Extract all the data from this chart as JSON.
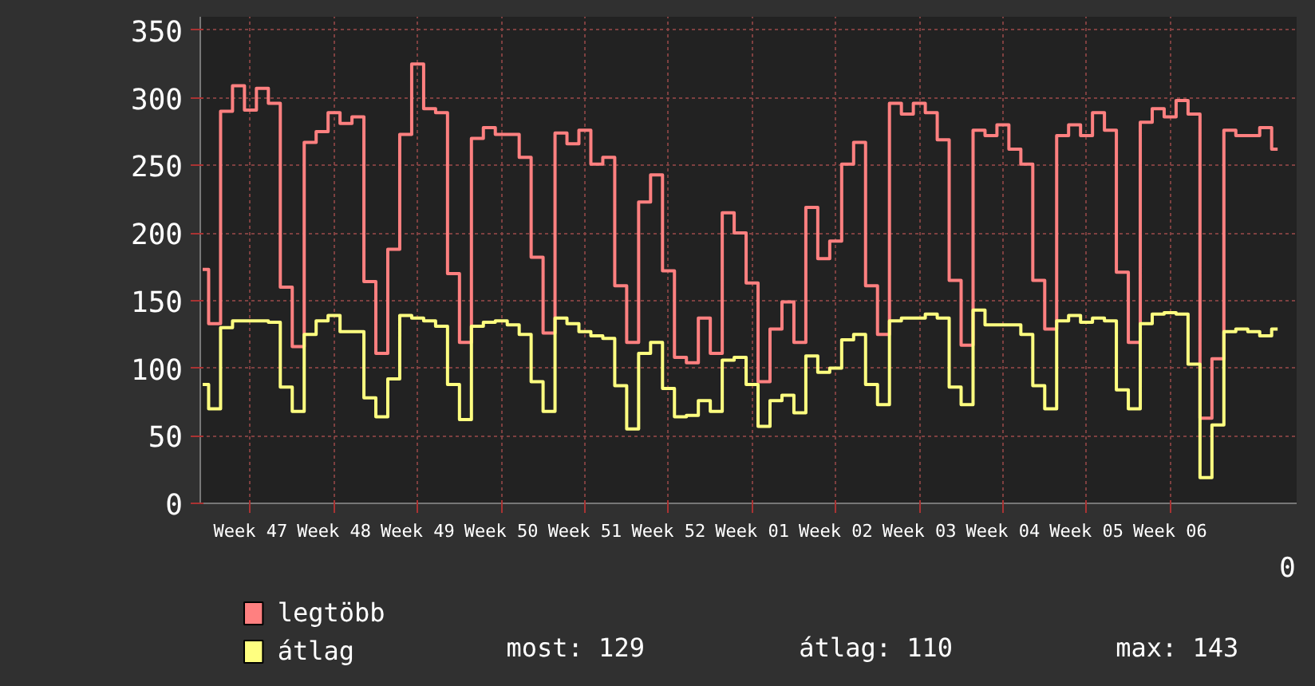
{
  "chart_data": {
    "type": "step",
    "categories": [
      null,
      null,
      null,
      null,
      "Week 47",
      null,
      null,
      null,
      null,
      null,
      null,
      "Week 48",
      null,
      null,
      null,
      null,
      null,
      null,
      "Week 49",
      null,
      null,
      null,
      null,
      null,
      null,
      "Week 50",
      null,
      null,
      null,
      null,
      null,
      null,
      "Week 51",
      null,
      null,
      null,
      null,
      null,
      null,
      "Week 52",
      null,
      null,
      null,
      null,
      null,
      null,
      "Week 01",
      null,
      null,
      null,
      null,
      null,
      null,
      "Week 02",
      null,
      null,
      null,
      null,
      null,
      null,
      "Week 03",
      null,
      null,
      null,
      null,
      null,
      null,
      "Week 04",
      null,
      null,
      null,
      null,
      null,
      null,
      "Week 05",
      null,
      null,
      null,
      null,
      null,
      null,
      "Week 06",
      null,
      null,
      null,
      null,
      null,
      null,
      null,
      null,
      null
    ],
    "series": [
      {
        "name": "legtöbb",
        "color": "#ff8080",
        "values": [
          173,
          133,
          290,
          309,
          291,
          307,
          296,
          160,
          116,
          267,
          275,
          289,
          281,
          286,
          164,
          111,
          188,
          273,
          325,
          292,
          289,
          170,
          119,
          270,
          278,
          273,
          273,
          256,
          182,
          126,
          274,
          266,
          276,
          251,
          256,
          161,
          119,
          223,
          243,
          172,
          108,
          104,
          137,
          111,
          215,
          200,
          163,
          90,
          129,
          149,
          119,
          219,
          181,
          194,
          251,
          267,
          161,
          125,
          296,
          288,
          296,
          289,
          269,
          165,
          117,
          276,
          272,
          280,
          262,
          251,
          165,
          129,
          272,
          280,
          272,
          289,
          276,
          171,
          119,
          282,
          292,
          286,
          298,
          288,
          63,
          107,
          276,
          272,
          272,
          278,
          262
        ]
      },
      {
        "name": "átlag",
        "color": "#ffff80",
        "values": [
          88,
          70,
          130,
          135,
          135,
          135,
          134,
          86,
          68,
          125,
          135,
          139,
          127,
          127,
          78,
          64,
          92,
          139,
          137,
          135,
          131,
          88,
          62,
          131,
          134,
          135,
          132,
          125,
          90,
          68,
          137,
          133,
          127,
          124,
          122,
          87,
          55,
          111,
          119,
          85,
          64,
          65,
          76,
          68,
          106,
          108,
          88,
          57,
          76,
          80,
          67,
          109,
          97,
          100,
          121,
          125,
          88,
          73,
          135,
          137,
          137,
          140,
          137,
          86,
          73,
          143,
          132,
          132,
          132,
          125,
          87,
          70,
          135,
          139,
          134,
          137,
          135,
          84,
          70,
          133,
          140,
          141,
          140,
          103,
          19,
          58,
          127,
          129,
          127,
          124,
          129
        ]
      }
    ],
    "ylim": [
      0,
      360
    ],
    "yticks": [
      0,
      50,
      100,
      150,
      200,
      250,
      300,
      350
    ],
    "grid": true,
    "legend": "bottom",
    "annotations": [
      "0",
      "most: 129",
      "átlag: 110",
      "max: 143"
    ]
  }
}
